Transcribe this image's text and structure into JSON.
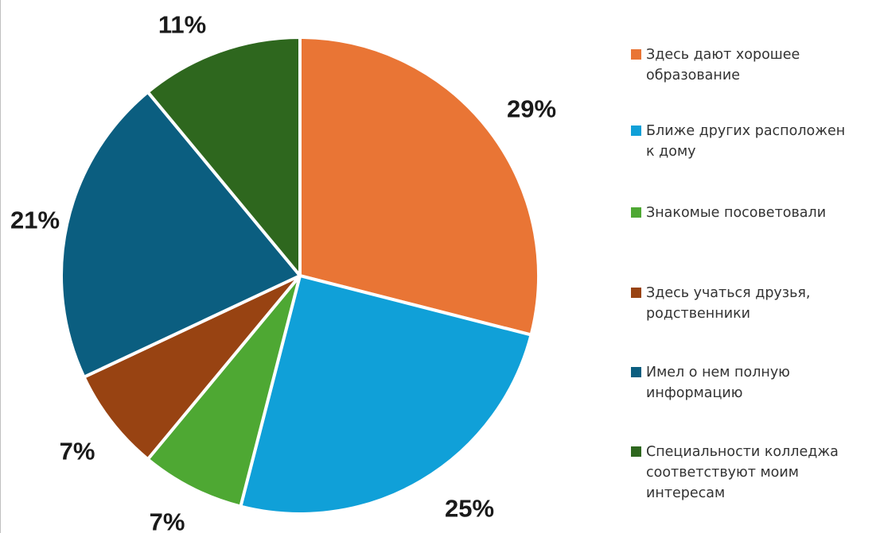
{
  "chart_data": {
    "type": "pie",
    "start_angle_deg": 0,
    "direction": "clockwise",
    "slices": [
      {
        "label": "Здесь дают хорошее образование",
        "value": 29,
        "display": "29%",
        "color": "#E97535"
      },
      {
        "label": "Ближе других расположен к дому",
        "value": 25,
        "display": "25%",
        "color": "#10A0D8"
      },
      {
        "label": "Знакомые посоветовали",
        "value": 7,
        "display": "7%",
        "color": "#4EA833"
      },
      {
        "label": "Здесь учаться друзья, родственники",
        "value": 7,
        "display": "7%",
        "color": "#984312"
      },
      {
        "label": "Имел о нем полную информацию",
        "value": 21,
        "display": "21%",
        "color": "#0B5E80"
      },
      {
        "label": "Специальности колледжа соответствуют моим интересам",
        "value": 11,
        "display": "11%",
        "color": "#2E671E"
      }
    ],
    "legend_position": "right"
  },
  "legend": {
    "items": [
      {
        "text": "Здесь дают хорошее\nобразование",
        "color": "#E97535"
      },
      {
        "text": "Ближе других расположен\nк дому",
        "color": "#10A0D8"
      },
      {
        "text": "Знакомые посоветовали",
        "color": "#4EA833"
      },
      {
        "text": "Здесь учаться друзья,\nродственники",
        "color": "#984312"
      },
      {
        "text": "Имел о нем полную\nинформацию",
        "color": "#0B5E80"
      },
      {
        "text": "Специальности колледжа\nсоответствуют моим\nинтересам",
        "color": "#2E671E"
      }
    ]
  }
}
